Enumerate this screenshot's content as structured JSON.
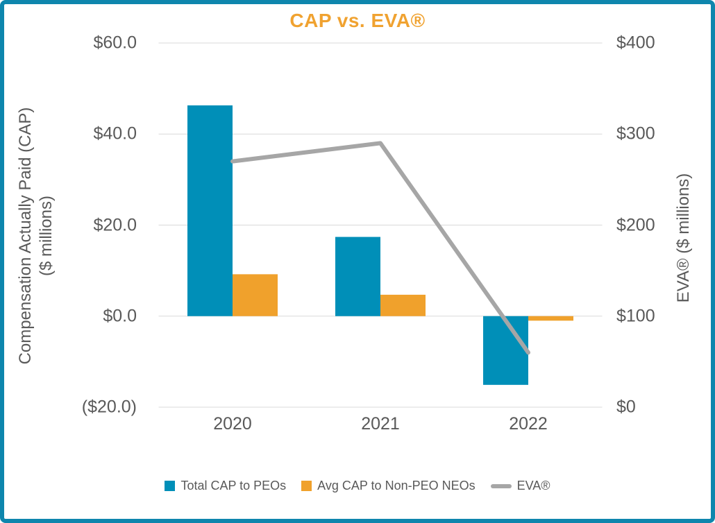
{
  "chart_data": {
    "type": "combo-bar-line",
    "title": "CAP vs. EVA®",
    "categories": [
      "2020",
      "2021",
      "2022"
    ],
    "series": [
      {
        "name": "Total CAP to PEOs",
        "type": "bar",
        "axis": "left",
        "color": "#008FB8",
        "values": [
          46.3,
          17.4,
          -15.1
        ]
      },
      {
        "name": "Avg CAP to Non-PEO NEOs",
        "type": "bar",
        "axis": "left",
        "color": "#F0A12C",
        "values": [
          9.2,
          4.7,
          -1.0
        ]
      },
      {
        "name": "EVA®",
        "type": "line",
        "axis": "right",
        "color": "#A6A6A6",
        "values": [
          270,
          290,
          60
        ]
      }
    ],
    "left_axis": {
      "title_line1": "Compensation Actually Paid (CAP)",
      "title_line2": "($ millions)",
      "range": [
        -20,
        60
      ],
      "ticks": [
        60,
        40,
        20,
        0,
        -20
      ],
      "tick_labels": [
        "$60.0",
        "$40.0",
        "$20.0",
        "$0.0",
        "($20.0)"
      ]
    },
    "right_axis": {
      "title": "EVA® ($ millions)",
      "range": [
        0,
        400
      ],
      "ticks": [
        400,
        300,
        200,
        100,
        0
      ],
      "tick_labels": [
        "$400",
        "$300",
        "$200",
        "$100",
        "$0"
      ]
    },
    "legend_position": "bottom",
    "grid": true,
    "colors": {
      "title": "#F0A230",
      "border": "#0E86AD",
      "grid": "#D9D9D9",
      "text": "#595959"
    }
  }
}
